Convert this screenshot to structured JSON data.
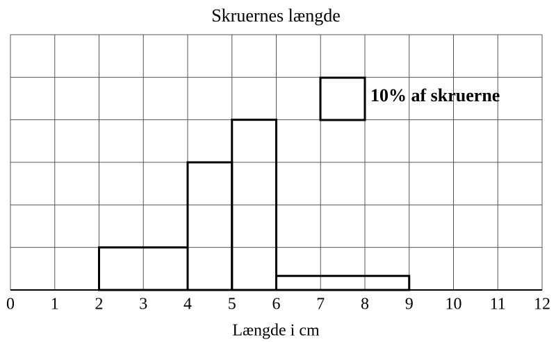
{
  "chart_data": {
    "type": "histogram",
    "title": "Skruernes længde",
    "xlabel": "Længde i cm",
    "bins": [
      2,
      4,
      5,
      6,
      9
    ],
    "values": [
      1,
      3,
      4,
      0.33
    ],
    "color": "#000000",
    "xlim": [
      0,
      12
    ],
    "xticks": [
      0,
      1,
      2,
      3,
      4,
      5,
      6,
      7,
      8,
      9,
      10,
      11,
      12
    ],
    "ylim": [
      0,
      6
    ],
    "yticks": [
      0,
      1,
      2,
      3,
      4,
      5,
      6
    ],
    "grid": true,
    "legend": {
      "label": "10% af skruerne"
    }
  }
}
